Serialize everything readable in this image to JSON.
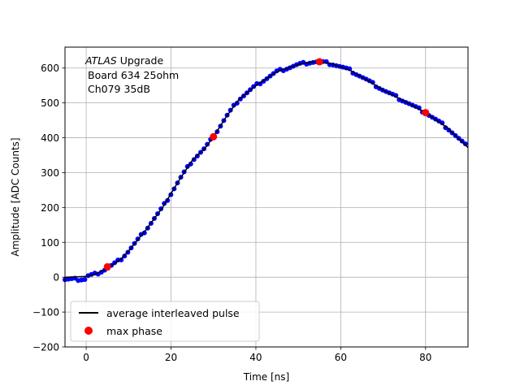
{
  "chart_data": {
    "type": "scatter",
    "title": "",
    "xlabel": "Time [ns]",
    "ylabel": "Amplitude [ADC Counts]",
    "xlim": [
      -5,
      90
    ],
    "ylim": [
      -200,
      660
    ],
    "xticks": [
      0,
      20,
      40,
      60,
      80
    ],
    "yticks": [
      -200,
      -100,
      0,
      100,
      200,
      300,
      400,
      500,
      600
    ],
    "xtick_labels": [
      "0",
      "20",
      "40",
      "60",
      "80"
    ],
    "ytick_labels": [
      "−200",
      "−100",
      "0",
      "100",
      "200",
      "300",
      "400",
      "500",
      "600"
    ],
    "grid": true,
    "annotation": {
      "italic": "ATLAS",
      "line1_rest": " Upgrade",
      "line2": "Board 634 25ohm",
      "line3": "Ch079 35dB"
    },
    "legend": {
      "placement": "lower-left",
      "entries": [
        "average interleaved pulse",
        "max phase"
      ]
    },
    "colors": {
      "samples": "#0000ff",
      "average_line": "#000000",
      "max_phase": "#ff0000"
    },
    "series": [
      {
        "name": "average interleaved pulse",
        "kind": "line",
        "x": [
          -5,
          0,
          2,
          5,
          8,
          10,
          14,
          18,
          20,
          22,
          25,
          28,
          30,
          33,
          36,
          40,
          45,
          50,
          53,
          55,
          58,
          62,
          66,
          70,
          75,
          80,
          85,
          90
        ],
        "y": [
          0,
          2,
          8,
          25,
          50,
          75,
          135,
          200,
          240,
          280,
          335,
          370,
          403,
          460,
          510,
          550,
          590,
          610,
          617,
          618,
          612,
          595,
          567,
          537,
          505,
          472,
          430,
          372
        ]
      },
      {
        "name": "max phase",
        "kind": "markers",
        "x": [
          5,
          30,
          55,
          80
        ],
        "y": [
          30,
          403,
          618,
          472
        ]
      }
    ]
  }
}
